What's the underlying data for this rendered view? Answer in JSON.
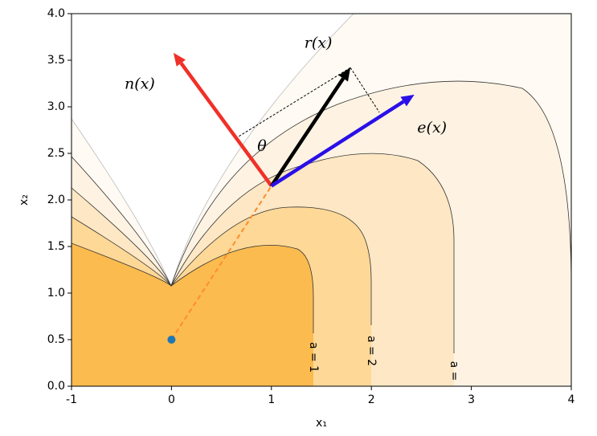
{
  "chart_data": {
    "type": "vector",
    "xlabel": "x₁",
    "ylabel": "x₂",
    "xlim": [
      -1,
      4
    ],
    "ylim": [
      0,
      4
    ],
    "xticks": [
      -1,
      0,
      1,
      2,
      3,
      4
    ],
    "yticks": [
      {
        "value": 0,
        "label": "0.0"
      },
      {
        "value": 0.5,
        "label": "0.5"
      },
      {
        "value": 1,
        "label": "1.0"
      },
      {
        "value": 1.5,
        "label": "1.5"
      },
      {
        "value": 2,
        "label": "2.0"
      },
      {
        "value": 2.5,
        "label": "2.5"
      },
      {
        "value": 3,
        "label": "3.0"
      },
      {
        "value": 3.5,
        "label": "3.5"
      },
      {
        "value": 4,
        "label": "4.0"
      }
    ],
    "point": {
      "x": 0,
      "y": 0.5,
      "color": "#1f77b4"
    },
    "origin": {
      "x": 1,
      "y": 2.15
    },
    "vectors": [
      {
        "name": "n(x)",
        "color": "#f03028",
        "x": 0.02,
        "y": 3.58
      },
      {
        "name": "r(x)",
        "color": "#000000",
        "x": 1.79,
        "y": 3.42
      },
      {
        "name": "e(x)",
        "color": "#2a10e8",
        "x": 2.43,
        "y": 3.13
      }
    ],
    "projections": [
      {
        "x": 2.08,
        "y": 2.94
      },
      {
        "x": 0.64,
        "y": 2.66
      }
    ],
    "angle_label": "θ",
    "contour_labels": [
      "a = 1",
      "a = 2",
      "a = "
    ]
  }
}
